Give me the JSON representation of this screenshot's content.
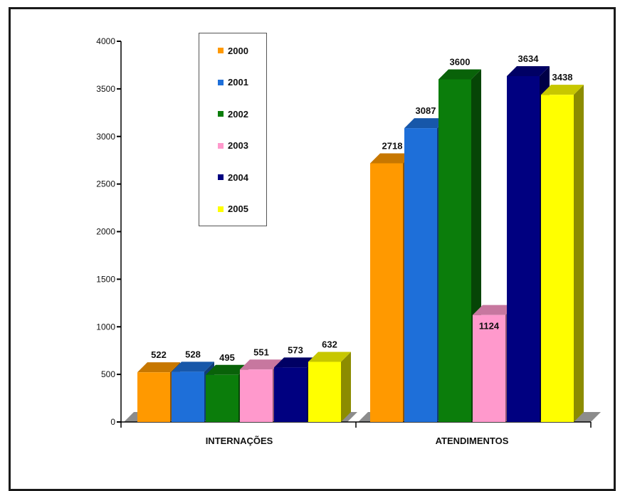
{
  "chart_data": {
    "type": "bar",
    "categories": [
      "INTERNAÇÕES",
      "ATENDIMENTOS"
    ],
    "series": [
      {
        "name": "2000",
        "values": [
          522,
          2718
        ]
      },
      {
        "name": "2001",
        "values": [
          528,
          3087
        ]
      },
      {
        "name": "2002",
        "values": [
          495,
          3600
        ]
      },
      {
        "name": "2003",
        "values": [
          551,
          1124
        ]
      },
      {
        "name": "2004",
        "values": [
          573,
          3634
        ]
      },
      {
        "name": "2005",
        "values": [
          632,
          3438
        ]
      }
    ],
    "ylim": [
      0,
      4000
    ],
    "yticks": [
      "0",
      "500",
      "1000",
      "1500",
      "2000",
      "2500",
      "3000",
      "3500",
      "4000"
    ],
    "grid": false,
    "style": "3d",
    "legend_position": "top-left"
  },
  "colors": {
    "series": [
      "#ff9900",
      "#1e6fd9",
      "#0b7d0b",
      "#ff99cc",
      "#000080",
      "#ffff00"
    ],
    "floor": "#8c8c8c",
    "axis": "#000000"
  }
}
